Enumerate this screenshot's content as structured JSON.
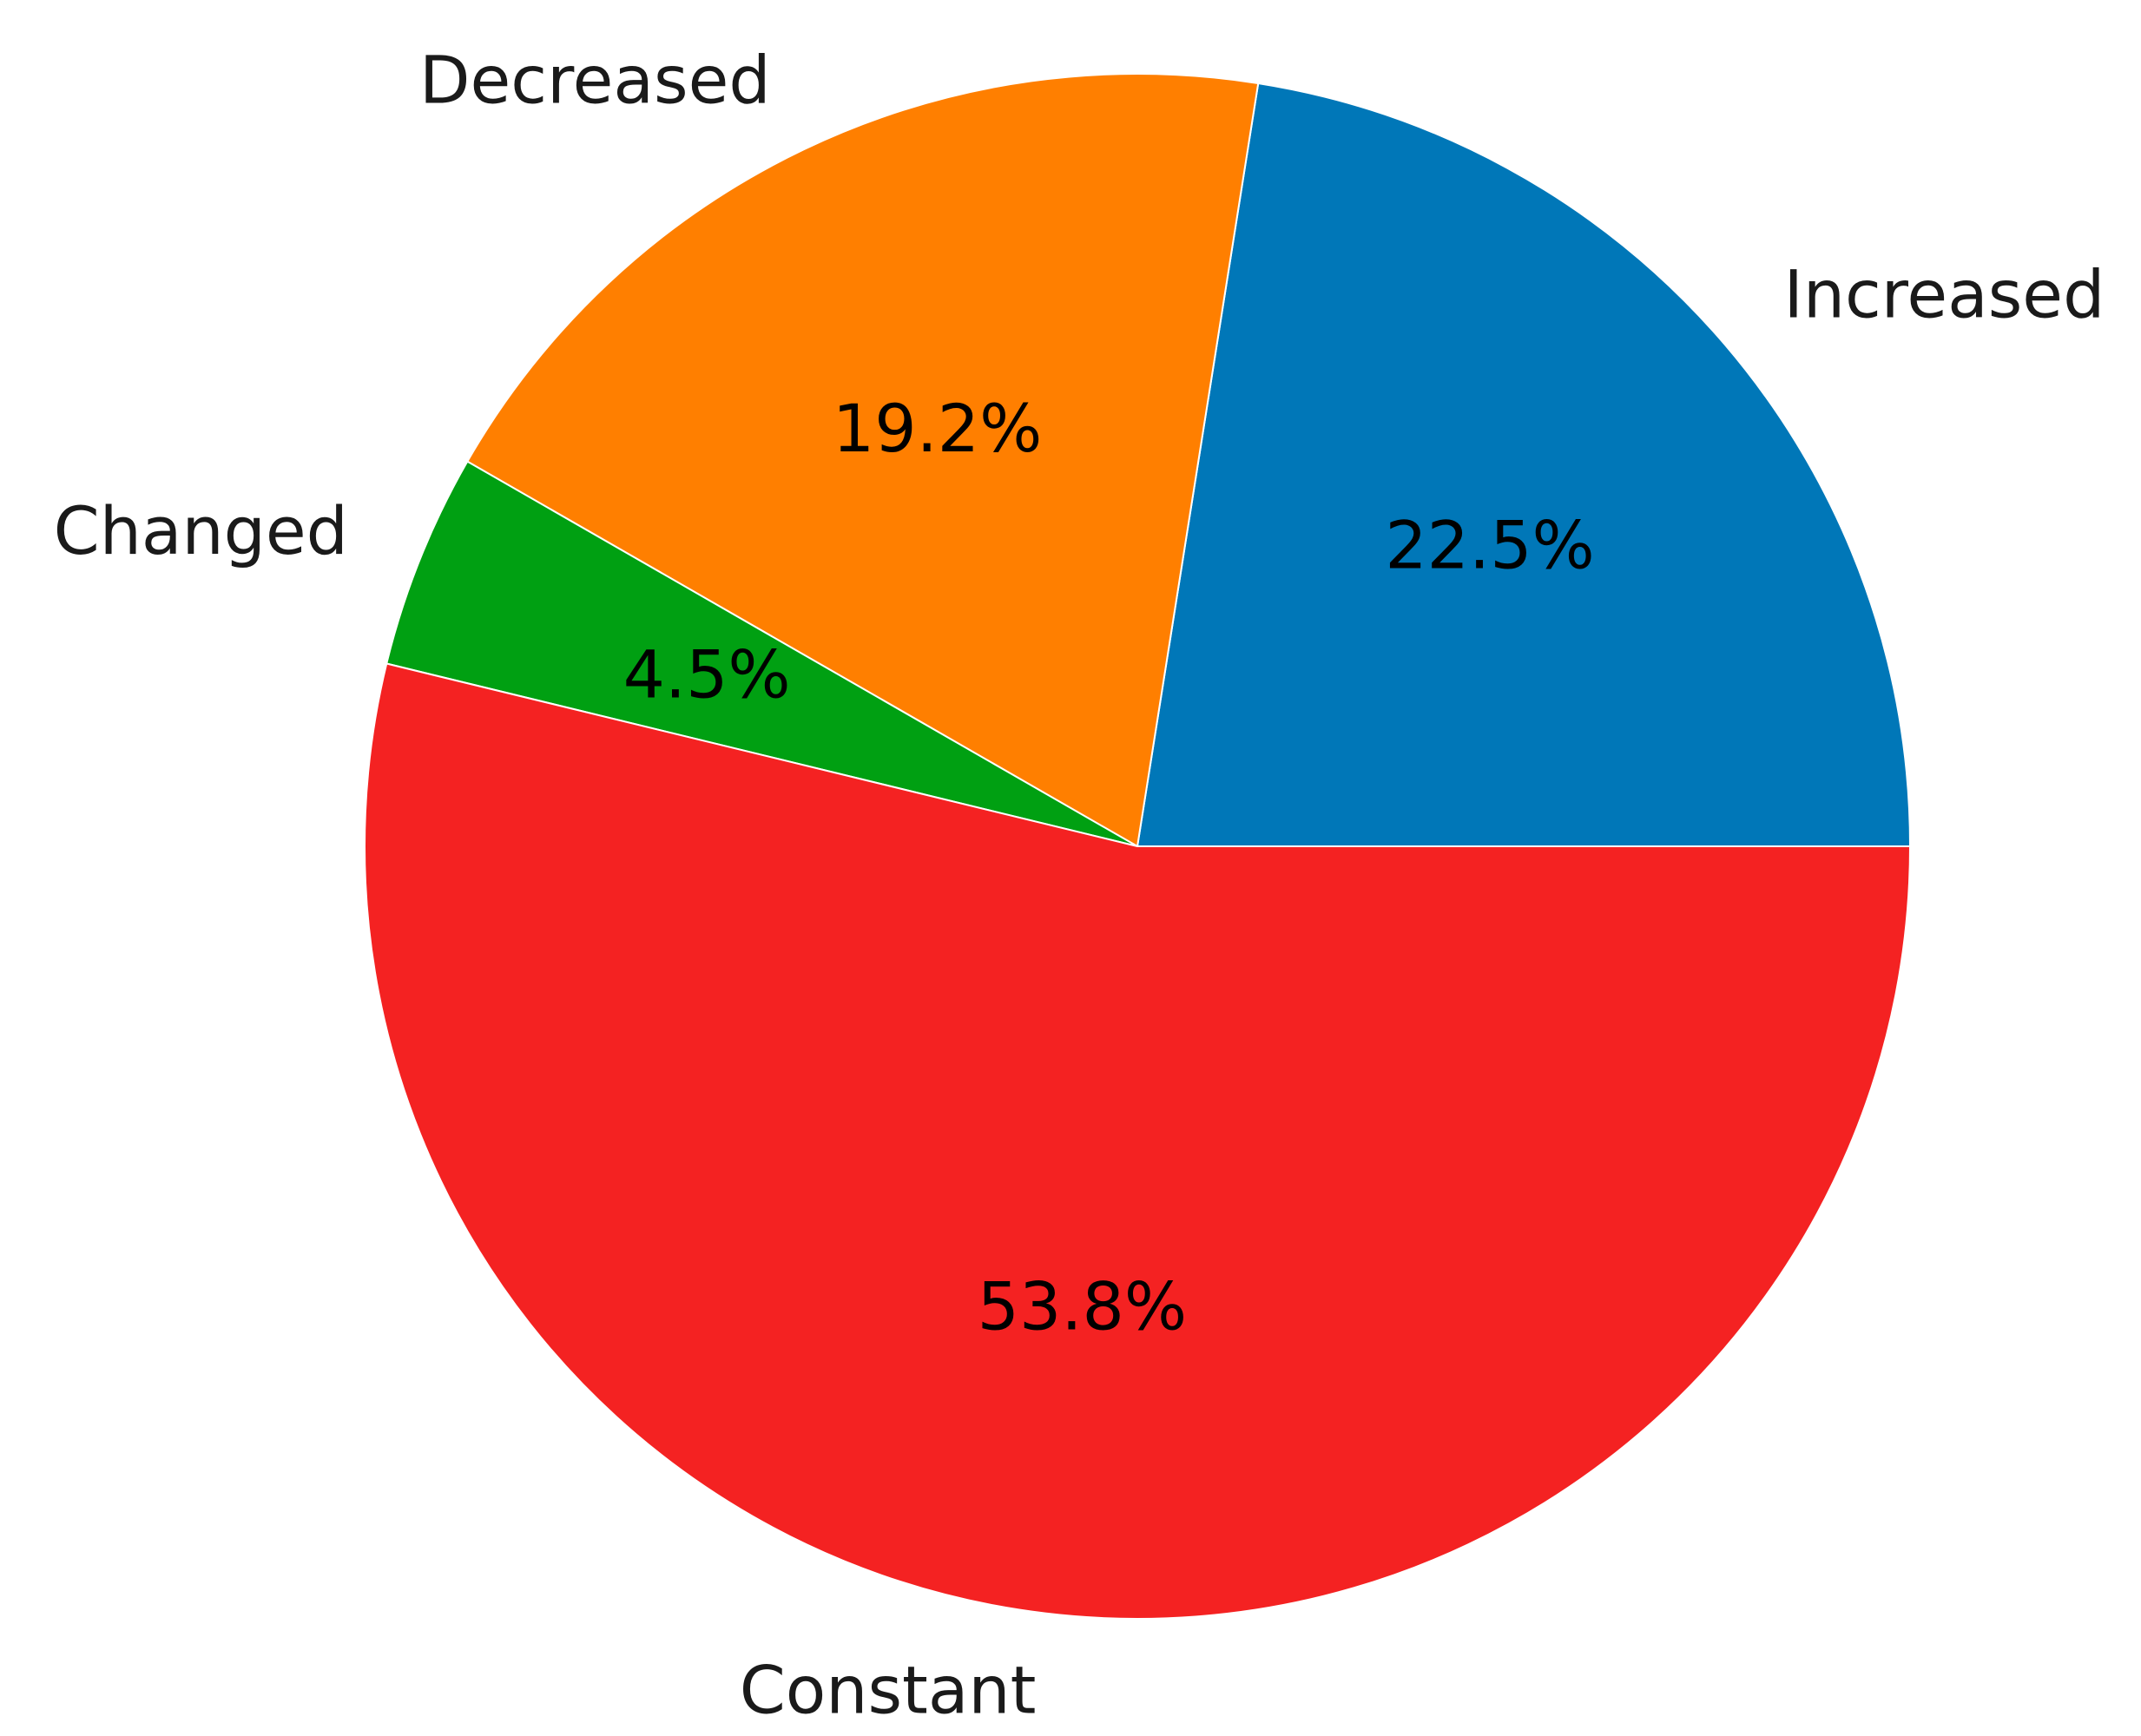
{
  "chart_data": {
    "type": "pie",
    "start_angle_deg": 0,
    "direction": "counterclockwise",
    "slices": [
      {
        "label": "Increased",
        "value": 22.5,
        "percent_label": "22.5%",
        "color": "#0077b8"
      },
      {
        "label": "Decreased",
        "value": 19.2,
        "percent_label": "19.2%",
        "color": "#ff7f00"
      },
      {
        "label": "Changed",
        "value": 4.5,
        "percent_label": "4.5%",
        "color": "#00a012"
      },
      {
        "label": "Constant",
        "value": 53.8,
        "percent_label": "53.8%",
        "color": "#f42222"
      }
    ],
    "title": "",
    "legend": "none"
  }
}
